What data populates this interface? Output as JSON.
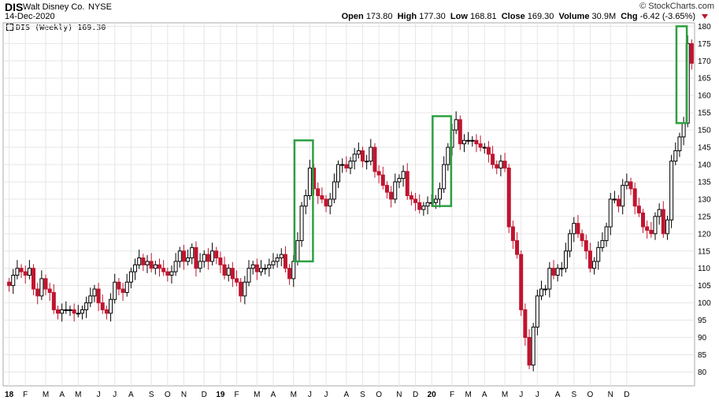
{
  "header": {
    "symbol": "DIS",
    "company": "Walt Disney Co.",
    "exchange": "NYSE",
    "date": "14-Dec-2020",
    "brand": "© StockCharts.com",
    "open_label": "Open",
    "open": "173.80",
    "high_label": "High",
    "high": "177.30",
    "low_label": "Low",
    "low": "168.81",
    "close_label": "Close",
    "close": "169.30",
    "volume_label": "Volume",
    "volume": "30.9M",
    "chg_label": "Chg",
    "chg": "-6.42 (-3.65%)"
  },
  "legend": {
    "label": "DIS (Weekly) 169.30"
  },
  "colors": {
    "up": "#000000",
    "down": "#c0152f",
    "highlight": "#2ea043",
    "grid": "#e6e6e6"
  },
  "chart_data": {
    "type": "candlestick",
    "ylim": [
      76,
      181
    ],
    "y_ticks": [
      80,
      85,
      90,
      95,
      100,
      105,
      110,
      115,
      120,
      125,
      130,
      135,
      140,
      145,
      150,
      155,
      160,
      165,
      170,
      175,
      180
    ],
    "x_ticks": [
      "18",
      "F",
      "M",
      "A",
      "M",
      "J",
      "J",
      "A",
      "S",
      "O",
      "N",
      "D",
      "19",
      "F",
      "M",
      "A",
      "M",
      "J",
      "J",
      "A",
      "S",
      "O",
      "N",
      "D",
      "20",
      "F",
      "M",
      "A",
      "M",
      "J",
      "J",
      "A",
      "S",
      "O",
      "N",
      "D"
    ],
    "closes": [
      105,
      108,
      110,
      109,
      108,
      110,
      104,
      102,
      107,
      104,
      103,
      98,
      97,
      98,
      98,
      98,
      97,
      97,
      98,
      100,
      102,
      104,
      100,
      98,
      97,
      101,
      106,
      104,
      103,
      106,
      109,
      111,
      113,
      111,
      112,
      110,
      111,
      110,
      109,
      108,
      109,
      112,
      115,
      112,
      113,
      116,
      110,
      112,
      114,
      112,
      115,
      113,
      111,
      108,
      110,
      107,
      106,
      102,
      106,
      110,
      111,
      109,
      110,
      110,
      111,
      112,
      113,
      114,
      110,
      107,
      112,
      118,
      128,
      131,
      139,
      133,
      131,
      130,
      128,
      130,
      135,
      140,
      140,
      139,
      141,
      143,
      144,
      141,
      141,
      145,
      138,
      137,
      134,
      132,
      130,
      135,
      136,
      138,
      131,
      130,
      129,
      127,
      128,
      129,
      129,
      130,
      133,
      140,
      145,
      150,
      153,
      146,
      147,
      147,
      147,
      146,
      145,
      145,
      143,
      140,
      139,
      141,
      139,
      122,
      118,
      114,
      98,
      90,
      82,
      93,
      102,
      104,
      104,
      110,
      108,
      110,
      110,
      115,
      120,
      123,
      120,
      118,
      115,
      110,
      112,
      116,
      118,
      122,
      130,
      130,
      128,
      134,
      135,
      133,
      128,
      126,
      122,
      121,
      120,
      125,
      127,
      120,
      124,
      141,
      144,
      148,
      152,
      175,
      169.3
    ],
    "highlights": [
      {
        "from": 71,
        "to": 74,
        "low": 112,
        "high": 147
      },
      {
        "from": 105,
        "to": 108,
        "low": 128,
        "high": 154
      },
      {
        "from": 165,
        "to": 166,
        "low": 152,
        "high": 180
      }
    ]
  }
}
